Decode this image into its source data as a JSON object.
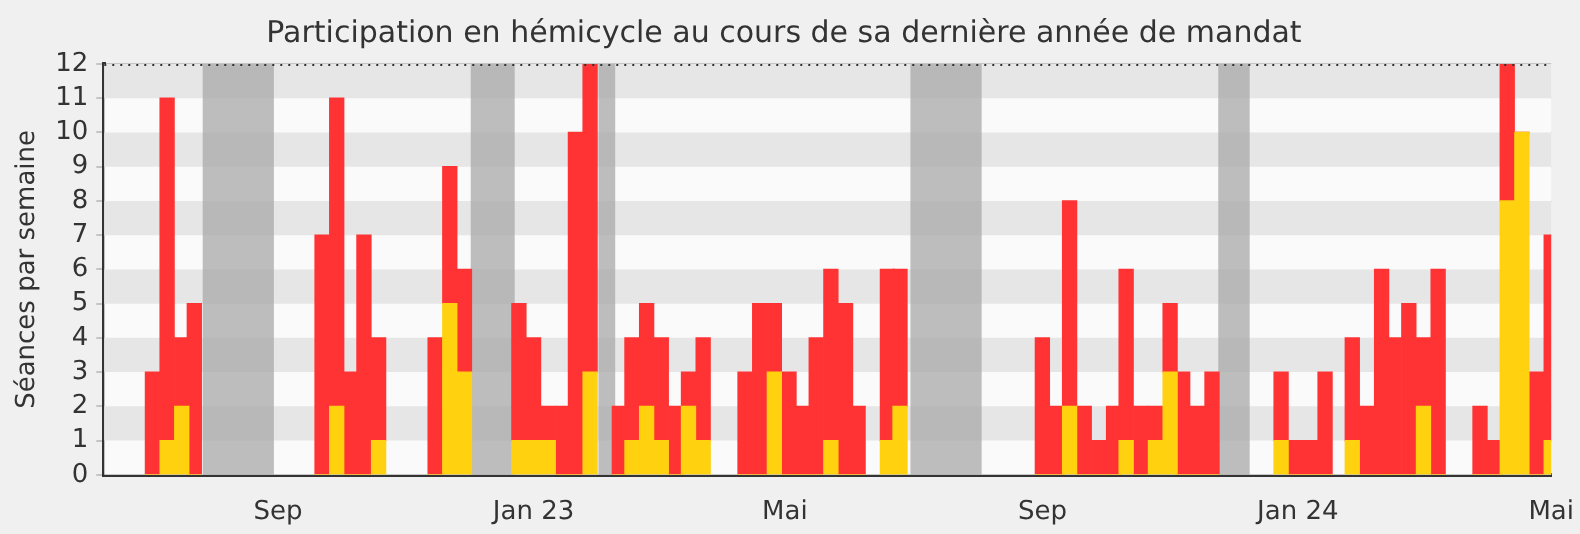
{
  "chart_data": {
    "type": "bar",
    "title": "Participation en hémicycle au cours de sa dernière année de mandat",
    "ylabel": "Séances par semaine",
    "x": [
      "2022-07-03",
      "2022-07-10",
      "2022-07-17",
      "2022-07-23",
      "2022-09-22",
      "2022-09-29",
      "2022-10-06",
      "2022-10-12",
      "2022-10-19",
      "2022-11-15",
      "2022-11-22",
      "2022-11-29",
      "2022-12-25",
      "2023-01-01",
      "2023-01-08",
      "2023-01-15",
      "2023-01-21",
      "2023-01-28",
      "2023-02-11",
      "2023-02-17",
      "2023-02-24",
      "2023-03-03",
      "2023-03-10",
      "2023-03-16",
      "2023-03-23",
      "2023-04-12",
      "2023-04-19",
      "2023-04-26",
      "2023-05-03",
      "2023-05-09",
      "2023-05-16",
      "2023-05-23",
      "2023-05-30",
      "2023-06-05",
      "2023-06-19",
      "2023-06-25",
      "2023-09-01",
      "2023-09-08",
      "2023-09-14",
      "2023-09-21",
      "2023-09-28",
      "2023-10-05",
      "2023-10-11",
      "2023-10-18",
      "2023-10-25",
      "2023-11-01",
      "2023-11-07",
      "2023-11-14",
      "2023-11-21",
      "2023-12-24",
      "2023-12-31",
      "2024-01-07",
      "2024-01-14",
      "2024-01-27",
      "2024-02-03",
      "2024-02-10",
      "2024-02-16",
      "2024-02-23",
      "2024-03-01",
      "2024-03-08",
      "2024-03-28",
      "2024-04-04",
      "2024-04-10",
      "2024-04-17",
      "2024-04-24",
      "2024-05-01"
    ],
    "stacked": true,
    "series": [
      {
        "color": "#ffd10f",
        "values": [
          0,
          1,
          2,
          0,
          0,
          2,
          0,
          0,
          1,
          0,
          5,
          3,
          1,
          1,
          1,
          0,
          0,
          3,
          0,
          1,
          2,
          1,
          0,
          2,
          1,
          0,
          0,
          3,
          0,
          0,
          0,
          1,
          0,
          0,
          1,
          2,
          0,
          0,
          2,
          0,
          0,
          0,
          1,
          0,
          1,
          3,
          0,
          0,
          0,
          1,
          0,
          0,
          0,
          1,
          0,
          0,
          0,
          0,
          2,
          0,
          0,
          0,
          8,
          10,
          0,
          1
        ]
      },
      {
        "color": "#ff3333",
        "values": [
          3,
          10,
          2,
          5,
          7,
          9,
          3,
          7,
          3,
          4,
          4,
          3,
          4,
          3,
          1,
          2,
          10,
          9,
          2,
          3,
          3,
          3,
          2,
          1,
          3,
          3,
          5,
          2,
          3,
          2,
          4,
          5,
          5,
          2,
          5,
          4,
          4,
          2,
          6,
          2,
          1,
          2,
          5,
          2,
          1,
          2,
          3,
          2,
          3,
          2,
          1,
          1,
          3,
          3,
          2,
          6,
          4,
          5,
          2,
          6,
          2,
          1,
          4,
          0,
          3,
          6
        ]
      }
    ],
    "xlim": [
      "2022-06-10",
      "2024-05-01"
    ],
    "xticks": [
      {
        "value": "2022-09-01",
        "label": "Sep"
      },
      {
        "value": "2023-01-01",
        "label": "Jan 23"
      },
      {
        "value": "2023-05-01",
        "label": "Mai"
      },
      {
        "value": "2023-09-01",
        "label": "Sep"
      },
      {
        "value": "2024-01-01",
        "label": "Jan 24"
      },
      {
        "value": "2024-05-01",
        "label": "Mai"
      }
    ],
    "ylim": [
      0,
      12
    ],
    "yticks": [
      0,
      1,
      2,
      3,
      4,
      5,
      6,
      7,
      8,
      9,
      10,
      11,
      12
    ],
    "bands": [
      {
        "axis": "x",
        "from": "2022-07-27",
        "to": "2022-08-30",
        "color": "#a8a8a8"
      },
      {
        "axis": "x",
        "from": "2022-12-02",
        "to": "2022-12-23",
        "color": "#a8a8a8"
      },
      {
        "axis": "x",
        "from": "2023-02-01",
        "to": "2023-02-09",
        "color": "#a8a8a8"
      },
      {
        "axis": "x",
        "from": "2023-06-30",
        "to": "2023-08-03",
        "color": "#a8a8a8"
      },
      {
        "axis": "x",
        "from": "2023-11-24",
        "to": "2023-12-09",
        "color": "#a8a8a8"
      }
    ],
    "grid": "y",
    "legend": false
  }
}
